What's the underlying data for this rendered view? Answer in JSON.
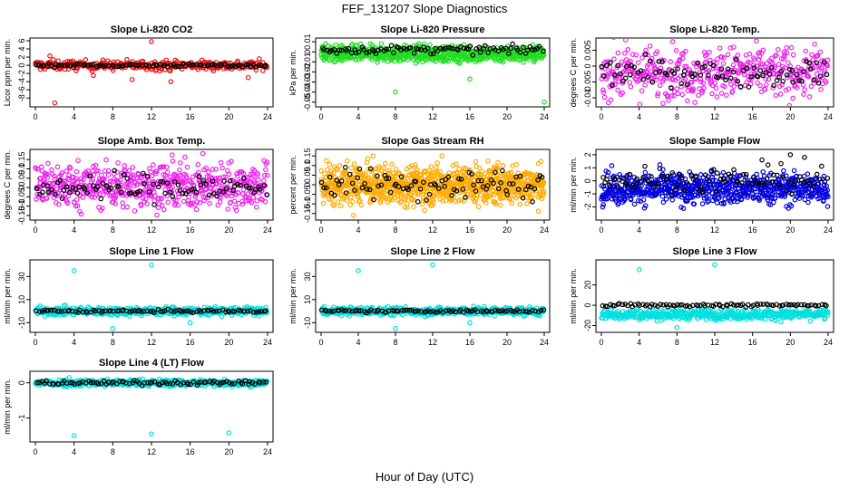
{
  "suptitle": "FEF_131207  Slope Diagnostics",
  "xlabel": "Hour of Day (UTC)",
  "chart_data": [
    {
      "type": "scatter",
      "title": "Slope Li-820 CO2",
      "ylabel": "Licor ppm per min.",
      "xlim": [
        0,
        24
      ],
      "xticks": [
        0,
        4,
        8,
        12,
        16,
        20,
        24
      ],
      "ylim": [
        -9.5,
        6
      ],
      "yticks": [
        -8,
        -6,
        -4,
        -2,
        0,
        2,
        4,
        6
      ],
      "grid": false,
      "series": [
        {
          "color": "#ee1111",
          "generator": {
            "center": 0.0,
            "spread": 0.6,
            "count": 300,
            "outliers": [
              [
                2,
                -9.2
              ],
              [
                12,
                5.8
              ],
              [
                10,
                -3.5
              ],
              [
                6,
                -2.5
              ],
              [
                14,
                -4
              ],
              [
                22,
                -3
              ],
              [
                1.5,
                2.3
              ]
            ]
          }
        },
        {
          "color": "#000000",
          "generator": {
            "center": 0.0,
            "spread": 0.2,
            "count": 90,
            "outliers": []
          }
        }
      ]
    },
    {
      "type": "scatter",
      "title": "Slope Li-820 Pressure",
      "ylabel": "kPa per min.",
      "xlim": [
        0,
        24
      ],
      "xticks": [
        0,
        4,
        8,
        12,
        16,
        20,
        24
      ],
      "ylim": [
        -0.052,
        0.011
      ],
      "yticks": [
        -0.05,
        -0.04,
        -0.03,
        -0.02,
        -0.01,
        0,
        0.01
      ],
      "grid": false,
      "series": [
        {
          "color": "#22dd22",
          "generator": {
            "center": -0.002,
            "spread": 0.004,
            "count": 700,
            "outliers": [
              [
                8,
                -0.04
              ],
              [
                16,
                -0.027
              ],
              [
                24,
                -0.05
              ],
              [
                0.5,
                0.008
              ]
            ]
          }
        },
        {
          "color": "#000000",
          "generator": {
            "center": 0.002,
            "spread": 0.002,
            "count": 90,
            "outliers": []
          }
        }
      ]
    },
    {
      "type": "scatter",
      "title": "Slope Li-820 Temp.",
      "ylabel": "degrees C per min.",
      "xlim": [
        0,
        24
      ],
      "xticks": [
        0,
        4,
        8,
        12,
        16,
        20,
        24
      ],
      "ylim": [
        -0.012,
        0.008
      ],
      "yticks": [
        -0.01,
        -0.005,
        0,
        0.005
      ],
      "grid": false,
      "series": [
        {
          "color": "#ee22ee",
          "generator": {
            "center": -0.002,
            "spread": 0.004,
            "count": 450,
            "outliers": []
          }
        },
        {
          "color": "#000000",
          "generator": {
            "center": -0.002,
            "spread": 0.002,
            "count": 90,
            "outliers": []
          }
        }
      ]
    },
    {
      "type": "scatter",
      "title": "Slope Amb. Box Temp.",
      "ylabel": "degrees C per min.",
      "xlim": [
        0,
        24
      ],
      "xticks": [
        0,
        4,
        8,
        12,
        16,
        20,
        24
      ],
      "ylim": [
        -0.16,
        0.19
      ],
      "yticks": [
        -0.15,
        -0.1,
        -0.05,
        0,
        0.05,
        0.1,
        0.15
      ],
      "grid": false,
      "series": [
        {
          "color": "#ee22ee",
          "generator": {
            "center": 0.01,
            "spread": 0.06,
            "count": 600,
            "outliers": []
          }
        },
        {
          "color": "#000000",
          "generator": {
            "center": 0.0,
            "spread": 0.04,
            "count": 90,
            "outliers": []
          }
        }
      ]
    },
    {
      "type": "scatter",
      "title": "Slope Gas Stream RH",
      "ylabel": "percent per min.",
      "xlim": [
        0,
        24
      ],
      "xticks": [
        0,
        4,
        8,
        12,
        16,
        20,
        24
      ],
      "ylim": [
        -0.17,
        0.17
      ],
      "yticks": [
        -0.15,
        -0.1,
        -0.05,
        0,
        0.05,
        0.1,
        0.15
      ],
      "grid": false,
      "series": [
        {
          "color": "#ffaa00",
          "generator": {
            "center": 0.0,
            "spread": 0.05,
            "count": 900,
            "outliers": [
              [
                3.5,
                -0.16
              ],
              [
                13,
                0.15
              ]
            ]
          }
        },
        {
          "color": "#000000",
          "generator": {
            "center": 0.0,
            "spread": 0.04,
            "count": 90,
            "outliers": []
          }
        }
      ]
    },
    {
      "type": "scatter",
      "title": "Slope Sample Flow",
      "ylabel": "ml/min per min.",
      "xlim": [
        0,
        24
      ],
      "xticks": [
        0,
        4,
        8,
        12,
        16,
        20,
        24
      ],
      "ylim": [
        -2.8,
        2.2
      ],
      "yticks": [
        -2,
        -1,
        0,
        1,
        2
      ],
      "grid": false,
      "series": [
        {
          "color": "#0000dd",
          "generator": {
            "center": -0.6,
            "spread": 0.6,
            "count": 700,
            "outliers": []
          }
        },
        {
          "color": "#000000",
          "generator": {
            "center": 0.1,
            "spread": 0.5,
            "count": 90,
            "outliers": [
              [
                20,
                2.0
              ],
              [
                17,
                1.6
              ],
              [
                21.5,
                1.8
              ]
            ]
          }
        }
      ]
    },
    {
      "type": "scatter",
      "title": "Slope Line 1 Flow",
      "ylabel": "ml/min per min.",
      "xlim": [
        0,
        24
      ],
      "xticks": [
        0,
        4,
        8,
        12,
        16,
        20,
        24
      ],
      "ylim": [
        -16,
        42
      ],
      "yticks": [
        -10,
        10,
        30
      ],
      "grid": false,
      "series": [
        {
          "color": "#00e0e0",
          "generator": {
            "center": 0.0,
            "spread": 1.8,
            "count": 450,
            "outliers": [
              [
                4,
                35
              ],
              [
                12,
                40
              ],
              [
                8,
                -15
              ],
              [
                16,
                -10
              ]
            ]
          }
        },
        {
          "color": "#000000",
          "generator": {
            "center": 0.0,
            "spread": 0.6,
            "count": 90,
            "outliers": []
          }
        }
      ]
    },
    {
      "type": "scatter",
      "title": "Slope Line 2 Flow",
      "ylabel": "ml/min per min.",
      "xlim": [
        0,
        24
      ],
      "xticks": [
        0,
        4,
        8,
        12,
        16,
        20,
        24
      ],
      "ylim": [
        -16,
        42
      ],
      "yticks": [
        -10,
        10,
        30
      ],
      "grid": false,
      "series": [
        {
          "color": "#00e0e0",
          "generator": {
            "center": 0.0,
            "spread": 1.8,
            "count": 450,
            "outliers": [
              [
                4,
                35
              ],
              [
                12,
                40
              ],
              [
                8,
                -15
              ],
              [
                16,
                -10
              ]
            ]
          }
        },
        {
          "color": "#000000",
          "generator": {
            "center": 0.0,
            "spread": 0.6,
            "count": 90,
            "outliers": []
          }
        }
      ]
    },
    {
      "type": "scatter",
      "title": "Slope Line 3 Flow",
      "ylabel": "ml/min per min.",
      "xlim": [
        0,
        24
      ],
      "xticks": [
        0,
        4,
        8,
        12,
        16,
        20,
        24
      ],
      "ylim": [
        -24,
        42
      ],
      "yticks": [
        -20,
        0,
        20
      ],
      "grid": false,
      "series": [
        {
          "color": "#00e0e0",
          "generator": {
            "center": -9.0,
            "spread": 2.5,
            "count": 450,
            "outliers": [
              [
                4,
                35
              ],
              [
                12,
                40
              ],
              [
                8,
                -22
              ]
            ]
          }
        },
        {
          "color": "#000000",
          "generator": {
            "center": 0.0,
            "spread": 0.8,
            "count": 90,
            "outliers": []
          }
        }
      ]
    },
    {
      "type": "scatter",
      "title": "Slope Line 4 (LT) Flow",
      "ylabel": "ml/min per min.",
      "xlim": [
        0,
        24
      ],
      "xticks": [
        0,
        4,
        8,
        12,
        16,
        20,
        24
      ],
      "ylim": [
        -1.6,
        0.25
      ],
      "yticks": [
        -1.0,
        0.0
      ],
      "grid": false,
      "series": [
        {
          "color": "#00e0e0",
          "generator": {
            "center": 0.0,
            "spread": 0.05,
            "count": 450,
            "outliers": [
              [
                4,
                -1.5
              ],
              [
                12,
                -1.45
              ],
              [
                20,
                -1.42
              ],
              [
                3.5,
                0.15
              ]
            ]
          }
        },
        {
          "color": "#000000",
          "generator": {
            "center": 0.0,
            "spread": 0.03,
            "count": 90,
            "outliers": []
          }
        }
      ]
    }
  ]
}
